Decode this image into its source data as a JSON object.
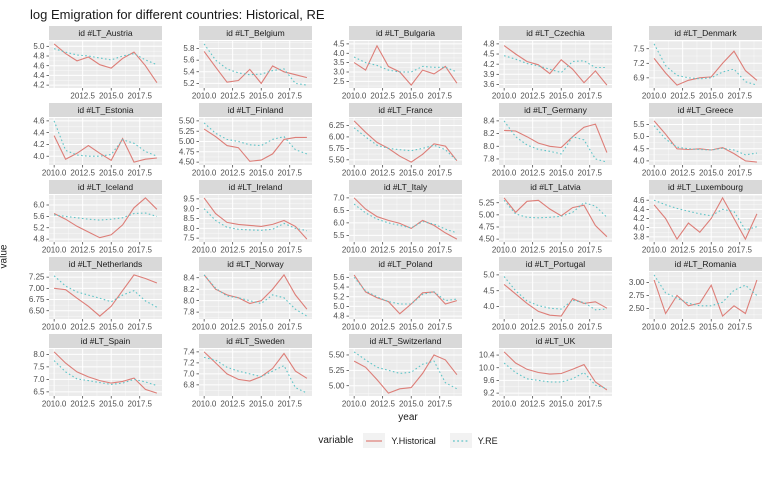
{
  "title": "log Emigration for different countries: Historical, RE",
  "axes": {
    "x_label": "year",
    "y_label": "value"
  },
  "legend": {
    "title": "variable",
    "series": [
      {
        "label": "Y.Historical",
        "color": "#dd7e78",
        "style": "solid"
      },
      {
        "label": "Y.RE",
        "color": "#5fc4c7",
        "style": "dotted"
      }
    ]
  },
  "colors": {
    "panel_bg": "#ebebeb",
    "strip_bg": "#d9d9d9",
    "grid": "#ffffff",
    "tick_text": "#4d4d4d",
    "strip_text": "#1a1a1a",
    "historical": "#dd7e78",
    "re": "#5fc4c7"
  },
  "chart_data": {
    "type": "line",
    "x": [
      2010,
      2011,
      2012,
      2013,
      2014,
      2015,
      2016,
      2017,
      2018,
      2019
    ],
    "x_major_ticks": [
      2010.0,
      2012.5,
      2015.0,
      2017.5
    ],
    "series_names": [
      "Y.Historical",
      "Y.RE"
    ],
    "panels": [
      {
        "label": "id #LT_Austria",
        "slug": "austria",
        "y_ticks": [
          "4.2",
          "4.4",
          "4.6",
          "4.8",
          "5.0"
        ],
        "x_tick_labels": [
          "2012.5",
          "2015.0",
          "2017.5"
        ],
        "historical": [
          5.05,
          4.85,
          4.7,
          4.78,
          4.62,
          4.55,
          4.75,
          4.88,
          4.6,
          4.25
        ],
        "re": [
          4.95,
          4.88,
          4.82,
          4.8,
          4.76,
          4.72,
          4.8,
          4.85,
          4.72,
          4.62
        ]
      },
      {
        "label": "id #LT_Belgium",
        "slug": "belgium",
        "y_ticks": [
          "5.2",
          "5.4",
          "5.6",
          "5.8"
        ],
        "x_tick_labels": [
          "2010.0",
          "2012.5",
          "2015.0",
          "2017.5"
        ],
        "historical": [
          5.75,
          5.48,
          5.22,
          5.25,
          5.44,
          5.2,
          5.5,
          5.4,
          5.35,
          5.3
        ],
        "re": [
          5.88,
          5.6,
          5.45,
          5.38,
          5.35,
          5.36,
          5.42,
          5.45,
          5.2,
          5.17
        ]
      },
      {
        "label": "id #LT_Bulgaria",
        "slug": "bulgaria",
        "y_ticks": [
          "2.5",
          "3.0",
          "3.5",
          "4.0",
          "4.5"
        ],
        "x_tick_labels": [
          "2010.0",
          "2012.5",
          "2015.0",
          "2017.5"
        ],
        "historical": [
          3.5,
          3.1,
          4.4,
          3.3,
          3.0,
          2.3,
          3.1,
          2.9,
          3.3,
          2.4
        ],
        "re": [
          3.8,
          3.5,
          3.35,
          3.1,
          3.0,
          3.0,
          3.3,
          3.25,
          3.25,
          3.0
        ]
      },
      {
        "label": "id #LT_Czechia",
        "slug": "czechia",
        "y_ticks": [
          "3.6",
          "3.9",
          "4.2",
          "4.5",
          "4.8"
        ],
        "x_tick_labels": [
          "2010.0",
          "2012.5",
          "2015.0",
          "2017.5"
        ],
        "historical": [
          4.75,
          4.5,
          4.28,
          4.18,
          3.92,
          4.33,
          4.05,
          3.65,
          4.0,
          3.58
        ],
        "re": [
          4.45,
          4.35,
          4.22,
          4.15,
          4.05,
          3.95,
          4.28,
          4.3,
          4.1,
          4.1
        ]
      },
      {
        "label": "id #LT_Denmark",
        "slug": "denmark",
        "y_ticks": [
          "6.9",
          "7.2",
          "7.5"
        ],
        "x_tick_labels": [
          "2010.0",
          "2012.5",
          "2015.0",
          "2017.5"
        ],
        "historical": [
          7.3,
          7.0,
          6.75,
          6.85,
          6.9,
          6.92,
          7.2,
          7.45,
          7.05,
          6.85
        ],
        "re": [
          7.6,
          7.15,
          6.95,
          6.9,
          6.88,
          6.9,
          7.02,
          7.08,
          6.82,
          6.75
        ]
      },
      {
        "label": "id #LT_Estonia",
        "slug": "estonia",
        "y_ticks": [
          "4.0",
          "4.2",
          "4.4",
          "4.6"
        ],
        "x_tick_labels": [
          "2010.0",
          "2012.5",
          "2015.0",
          "2017.5"
        ],
        "historical": [
          4.35,
          3.95,
          4.05,
          4.18,
          4.05,
          3.93,
          4.3,
          3.9,
          3.95,
          3.97
        ],
        "re": [
          4.6,
          4.1,
          4.02,
          4.0,
          4.0,
          4.03,
          4.28,
          4.22,
          4.08,
          4.0
        ]
      },
      {
        "label": "id #LT_Finland",
        "slug": "finland",
        "y_ticks": [
          "4.50",
          "4.75",
          "5.00",
          "5.25",
          "5.50"
        ],
        "x_tick_labels": [
          "2010.0",
          "2012.5",
          "2015.0",
          "2017.5"
        ],
        "historical": [
          5.3,
          5.12,
          4.9,
          4.85,
          4.52,
          4.55,
          4.7,
          5.05,
          5.1,
          5.1
        ],
        "re": [
          5.45,
          5.2,
          5.05,
          5.0,
          4.92,
          4.9,
          5.05,
          5.12,
          4.8,
          4.7
        ]
      },
      {
        "label": "id #LT_France",
        "slug": "france",
        "y_ticks": [
          "5.50",
          "5.75",
          "6.00",
          "6.25"
        ],
        "x_tick_labels": [
          "2010.0",
          "2012.5",
          "2015.0",
          "2017.5"
        ],
        "historical": [
          6.35,
          6.1,
          5.88,
          5.75,
          5.58,
          5.45,
          5.62,
          5.85,
          5.8,
          5.48
        ],
        "re": [
          6.2,
          6.0,
          5.82,
          5.75,
          5.72,
          5.7,
          5.75,
          5.82,
          5.72,
          5.48
        ]
      },
      {
        "label": "id #LT_Germany",
        "slug": "germany",
        "y_ticks": [
          "7.8",
          "8.0",
          "8.2",
          "8.4"
        ],
        "x_tick_labels": [
          "2010.0",
          "2012.5",
          "2015.0",
          "2017.5"
        ],
        "historical": [
          8.25,
          8.24,
          8.15,
          8.05,
          8.0,
          7.98,
          8.15,
          8.3,
          8.35,
          7.9
        ],
        "re": [
          8.4,
          8.15,
          8.02,
          7.95,
          7.92,
          7.88,
          8.15,
          8.1,
          7.8,
          7.75
        ]
      },
      {
        "label": "id #LT_Greece",
        "slug": "greece",
        "y_ticks": [
          "4.0",
          "4.5",
          "5.0",
          "5.5"
        ],
        "x_tick_labels": [
          "2010.0",
          "2012.5",
          "2015.0",
          "2017.5"
        ],
        "historical": [
          5.65,
          5.1,
          4.5,
          4.47,
          4.5,
          4.45,
          4.55,
          4.3,
          4.0,
          3.95
        ],
        "re": [
          5.45,
          4.9,
          4.57,
          4.5,
          4.47,
          4.45,
          4.52,
          4.45,
          4.25,
          4.32
        ]
      },
      {
        "label": "id #LT_Iceland",
        "slug": "iceland",
        "y_ticks": [
          "4.8",
          "5.2",
          "5.6",
          "6.0"
        ],
        "x_tick_labels": [
          "2010.0",
          "2012.5",
          "2015.0",
          "2017.5"
        ],
        "historical": [
          5.7,
          5.5,
          5.25,
          5.05,
          4.85,
          4.95,
          5.3,
          5.9,
          6.25,
          5.85
        ],
        "re": [
          5.65,
          5.6,
          5.55,
          5.5,
          5.47,
          5.5,
          5.55,
          5.7,
          5.72,
          5.6
        ]
      },
      {
        "label": "id #LT_Ireland",
        "slug": "ireland",
        "y_ticks": [
          "7.5",
          "8.0",
          "8.5",
          "9.0",
          "9.5"
        ],
        "x_tick_labels": [
          "2010.0",
          "2012.5",
          "2015.0",
          "2017.5"
        ],
        "historical": [
          9.55,
          8.75,
          8.3,
          8.2,
          8.15,
          8.1,
          8.2,
          8.4,
          8.1,
          7.45
        ],
        "re": [
          9.0,
          8.4,
          8.05,
          7.95,
          7.92,
          7.9,
          7.95,
          8.25,
          8.0,
          7.88
        ]
      },
      {
        "label": "id #LT_Italy",
        "slug": "italy",
        "y_ticks": [
          "5.5",
          "6.0",
          "6.5",
          "7.0"
        ],
        "x_tick_labels": [
          "2010.0",
          "2012.5",
          "2015.0",
          "2017.5"
        ],
        "historical": [
          7.0,
          6.55,
          6.25,
          6.1,
          5.98,
          5.78,
          6.1,
          5.9,
          5.6,
          5.35
        ],
        "re": [
          6.75,
          6.4,
          6.15,
          6.0,
          5.9,
          5.8,
          6.05,
          5.95,
          5.75,
          5.6
        ]
      },
      {
        "label": "id #LT_Latvia",
        "slug": "latvia",
        "y_ticks": [
          "4.50",
          "4.75",
          "5.00",
          "5.25"
        ],
        "x_tick_labels": [
          "2010.0",
          "2012.5",
          "2015.0",
          "2017.5"
        ],
        "historical": [
          5.35,
          5.05,
          5.28,
          5.3,
          5.12,
          4.98,
          5.15,
          5.2,
          4.78,
          4.55
        ],
        "re": [
          5.3,
          5.02,
          4.95,
          4.94,
          4.95,
          4.97,
          5.05,
          5.25,
          5.18,
          4.95
        ]
      },
      {
        "label": "id #LT_Luxembourg",
        "slug": "luxembourg",
        "y_ticks": [
          "3.8",
          "4.0",
          "4.2",
          "4.4",
          "4.6"
        ],
        "x_tick_labels": [
          "2010.0",
          "2012.5",
          "2015.0",
          "2017.5"
        ],
        "historical": [
          4.5,
          4.2,
          3.75,
          4.1,
          3.9,
          4.2,
          4.65,
          4.2,
          3.75,
          4.3
        ],
        "re": [
          4.6,
          4.5,
          4.42,
          4.36,
          4.3,
          4.26,
          4.4,
          4.35,
          3.95,
          4.02
        ]
      },
      {
        "label": "id #LT_Netherlands",
        "slug": "netherlands",
        "y_ticks": [
          "6.50",
          "6.75",
          "7.00",
          "7.25"
        ],
        "x_tick_labels": [
          "2010.0",
          "2012.5",
          "2015.0",
          "2017.5"
        ],
        "historical": [
          7.0,
          6.97,
          6.78,
          6.6,
          6.38,
          6.6,
          6.95,
          7.3,
          7.22,
          7.12
        ],
        "re": [
          7.28,
          7.05,
          6.92,
          6.85,
          6.78,
          6.7,
          6.85,
          6.95,
          6.72,
          6.58
        ]
      },
      {
        "label": "id #LT_Norway",
        "slug": "norway",
        "y_ticks": [
          "7.8",
          "8.0",
          "8.2",
          "8.4"
        ],
        "x_tick_labels": [
          "2010.0",
          "2012.5",
          "2015.0",
          "2017.5"
        ],
        "historical": [
          8.45,
          8.2,
          8.1,
          8.05,
          7.95,
          8.0,
          8.2,
          8.45,
          8.1,
          7.85
        ],
        "re": [
          8.45,
          8.22,
          8.08,
          8.05,
          8.0,
          7.95,
          8.1,
          8.05,
          7.85,
          7.73
        ]
      },
      {
        "label": "id #LT_Poland",
        "slug": "poland",
        "y_ticks": [
          "4.8",
          "5.0",
          "5.2",
          "5.4",
          "5.6"
        ],
        "x_tick_labels": [
          "2010.0",
          "2012.5",
          "2015.0",
          "2017.5"
        ],
        "historical": [
          5.65,
          5.3,
          5.18,
          5.1,
          4.85,
          5.05,
          5.28,
          5.3,
          5.05,
          5.12
        ],
        "re": [
          5.6,
          5.32,
          5.2,
          5.1,
          5.05,
          5.05,
          5.25,
          5.3,
          5.12,
          5.15
        ]
      },
      {
        "label": "id #LT_Portugal",
        "slug": "portugal",
        "y_ticks": [
          "4.0",
          "4.5",
          "5.0"
        ],
        "x_tick_labels": [
          "2010.0",
          "2012.5",
          "2015.0",
          "2017.5"
        ],
        "historical": [
          4.7,
          4.4,
          4.1,
          3.85,
          3.73,
          3.7,
          4.25,
          4.1,
          4.15,
          3.95
        ],
        "re": [
          4.95,
          4.5,
          4.18,
          4.03,
          3.95,
          3.92,
          4.2,
          4.13,
          3.9,
          3.92
        ]
      },
      {
        "label": "id #LT_Romania",
        "slug": "romania",
        "y_ticks": [
          "2.50",
          "2.75",
          "3.00"
        ],
        "x_tick_labels": [
          "2010.0",
          "2012.5",
          "2015.0",
          "2017.5"
        ],
        "historical": [
          3.05,
          2.4,
          2.75,
          2.55,
          2.6,
          2.95,
          2.35,
          2.55,
          2.4,
          3.05
        ],
        "re": [
          3.15,
          2.8,
          2.7,
          2.6,
          2.55,
          2.55,
          2.62,
          2.85,
          2.95,
          2.75
        ]
      },
      {
        "label": "id #LT_Spain",
        "slug": "spain",
        "y_ticks": [
          "6.5",
          "7.0",
          "7.5",
          "8.0"
        ],
        "x_tick_labels": [
          "2010.0",
          "2012.5",
          "2015.0",
          "2017.5"
        ],
        "historical": [
          8.1,
          7.65,
          7.3,
          7.1,
          6.95,
          6.85,
          6.92,
          7.05,
          6.6,
          6.45
        ],
        "re": [
          7.75,
          7.3,
          7.02,
          6.95,
          6.87,
          6.8,
          6.85,
          7.0,
          6.9,
          6.75
        ]
      },
      {
        "label": "id #LT_Sweden",
        "slug": "sweden",
        "y_ticks": [
          "6.8",
          "7.0",
          "7.2",
          "7.4"
        ],
        "x_tick_labels": [
          "2010.0",
          "2012.5",
          "2015.0",
          "2017.5"
        ],
        "historical": [
          7.4,
          7.2,
          7.0,
          6.9,
          6.87,
          6.95,
          7.1,
          7.37,
          7.05,
          6.92
        ],
        "re": [
          7.3,
          7.25,
          7.12,
          7.05,
          7.0,
          6.95,
          7.05,
          7.15,
          6.75,
          6.65
        ]
      },
      {
        "label": "id #LT_Switzerland",
        "slug": "switzerland",
        "y_ticks": [
          "5.00",
          "5.25",
          "5.50"
        ],
        "x_tick_labels": [
          "2010.0",
          "2012.5",
          "2015.0",
          "2017.5"
        ],
        "historical": [
          5.4,
          5.3,
          5.1,
          4.88,
          4.95,
          4.97,
          5.2,
          5.5,
          5.42,
          5.18
        ],
        "re": [
          5.55,
          5.42,
          5.3,
          5.25,
          5.2,
          5.22,
          5.35,
          5.4,
          5.05,
          4.95
        ]
      },
      {
        "label": "id #LT_UK",
        "slug": "uk",
        "y_ticks": [
          "9.2",
          "9.6",
          "10.0",
          "10.4"
        ],
        "x_tick_labels": [
          "2010.0",
          "2012.5",
          "2015.0",
          "2017.5"
        ],
        "historical": [
          10.5,
          10.15,
          9.95,
          9.85,
          9.8,
          9.82,
          9.95,
          10.1,
          9.55,
          9.3
        ],
        "re": [
          10.15,
          9.85,
          9.65,
          9.6,
          9.55,
          9.55,
          9.65,
          9.85,
          9.45,
          9.35
        ]
      }
    ]
  }
}
